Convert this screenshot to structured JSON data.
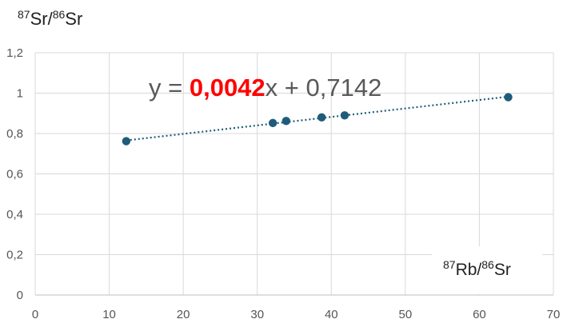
{
  "chart_data": {
    "type": "scatter",
    "title": "",
    "ylabel": {
      "sup1": "87",
      "base1": "Sr/",
      "sup2": "86",
      "base2": "Sr"
    },
    "xlabel": {
      "sup1": "87",
      "base1": "Rb/",
      "sup2": "86",
      "base2": "Sr"
    },
    "xlim": [
      0,
      70
    ],
    "ylim": [
      0,
      1.2
    ],
    "xticks": [
      "0",
      "10",
      "20",
      "30",
      "40",
      "50",
      "60",
      "70"
    ],
    "yticks": [
      "0",
      "0,2",
      "0,4",
      "0,6",
      "0,8",
      "1",
      "1,2"
    ],
    "grid": true,
    "series": [
      {
        "x": [
          12.3,
          32.1,
          33.9,
          38.7,
          41.8,
          63.9
        ],
        "y": [
          0.762,
          0.852,
          0.862,
          0.88,
          0.89,
          0.98
        ],
        "color": "#1f5c7a"
      }
    ],
    "trendline": {
      "type": "linear",
      "slope": 0.0042,
      "intercept": 0.7142,
      "x_range": [
        12.3,
        63.9
      ],
      "style": "dotted",
      "color": "#1f5c7a",
      "equation": {
        "prefix": "y = ",
        "slope_text": "0,0042",
        "suffix": "x + 0,7142",
        "slope_color": "#ff0000"
      }
    }
  }
}
